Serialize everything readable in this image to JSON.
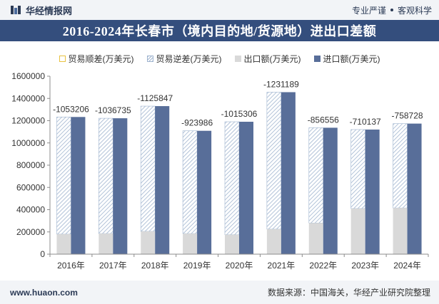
{
  "header": {
    "brand": "华经情报网",
    "tagline_left": "专业严谨",
    "tagline_right": "客观科学"
  },
  "title": "2016-2024年长春市（境内目的地/货源地）进出口差额",
  "legend": {
    "surplus": "贸易顺差(万美元)",
    "deficit": "贸易逆差(万美元)",
    "export": "出口额(万美元)",
    "import": "进口额(万美元)"
  },
  "colors": {
    "import": "#586e99",
    "export": "#d9d9d9",
    "deficit_hatch": "#9fb4cf",
    "surplus": "#e8c240",
    "title_bg": "#344e7d"
  },
  "chart_data": {
    "type": "bar",
    "categories": [
      "2016年",
      "2017年",
      "2018年",
      "2019年",
      "2020年",
      "2021年",
      "2022年",
      "2023年",
      "2024年"
    ],
    "series": [
      {
        "name": "出口额(万美元)",
        "values": [
          180000,
          185000,
          205000,
          185000,
          175000,
          225000,
          280000,
          410000,
          415000
        ]
      },
      {
        "name": "进口额(万美元)",
        "values": [
          1233206,
          1221735,
          1330847,
          1108986,
          1190306,
          1456189,
          1136556,
          1120137,
          1173728
        ]
      },
      {
        "name": "贸易逆差(万美元)",
        "values": [
          -1053206,
          -1036735,
          -1125847,
          -923986,
          -1015306,
          -1231189,
          -856556,
          -710137,
          -758728
        ]
      }
    ],
    "balance_labels": [
      "-1053206",
      "-1036735",
      "-1125847",
      "-923986",
      "-1015306",
      "-1231189",
      "-856556",
      "-710137",
      "-758728"
    ],
    "y_ticks": [
      "0",
      "200000",
      "400000",
      "600000",
      "800000",
      "1000000",
      "1200000",
      "1400000",
      "1600000"
    ],
    "ylim": [
      0,
      1600000
    ],
    "grid": false,
    "legend_position": "top"
  },
  "footer": {
    "website": "www.huaon.com",
    "source": "数据来源：中国海关，华经产业研究院整理"
  }
}
